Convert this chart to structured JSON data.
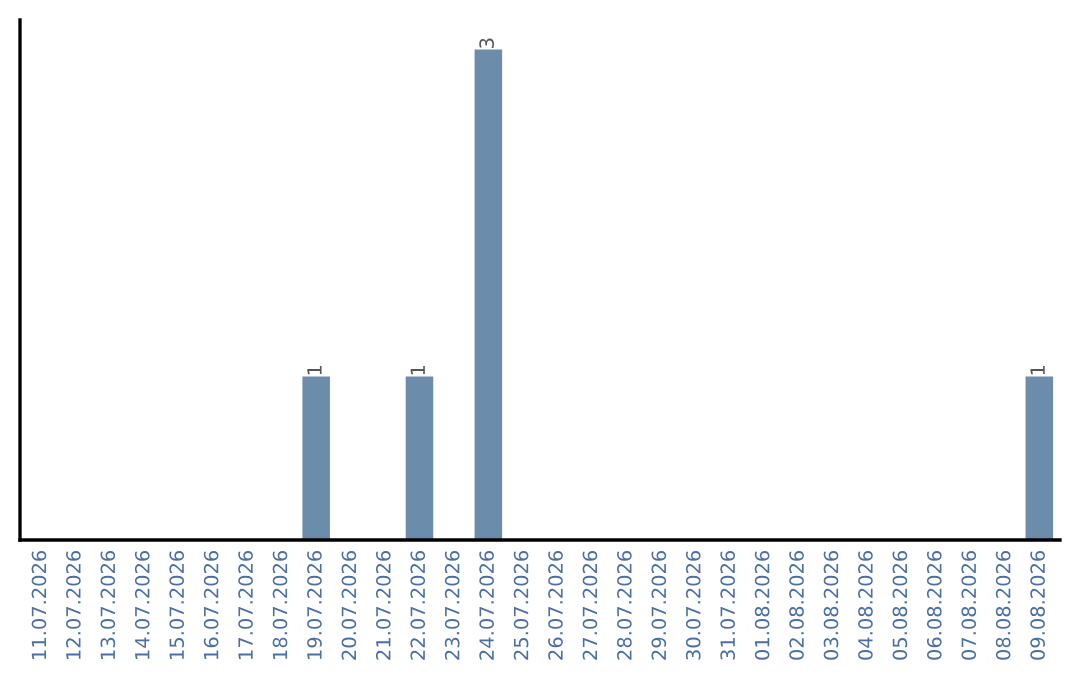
{
  "chart_data": {
    "type": "bar",
    "categories": [
      "11.07.2026",
      "12.07.2026",
      "13.07.2026",
      "14.07.2026",
      "15.07.2026",
      "16.07.2026",
      "17.07.2026",
      "18.07.2026",
      "19.07.2026",
      "20.07.2026",
      "21.07.2026",
      "22.07.2026",
      "23.07.2026",
      "24.07.2026",
      "25.07.2026",
      "26.07.2026",
      "27.07.2026",
      "28.07.2026",
      "29.07.2026",
      "30.07.2026",
      "31.07.2026",
      "01.08.2026",
      "02.08.2026",
      "03.08.2026",
      "04.08.2026",
      "05.08.2026",
      "06.08.2026",
      "07.08.2026",
      "08.08.2026",
      "09.08.2026"
    ],
    "values": [
      0,
      0,
      0,
      0,
      0,
      0,
      0,
      0,
      1,
      0,
      0,
      1,
      0,
      3,
      0,
      0,
      0,
      0,
      0,
      0,
      0,
      0,
      0,
      0,
      0,
      0,
      0,
      0,
      0,
      1
    ],
    "value_labels": [
      null,
      null,
      null,
      null,
      null,
      null,
      null,
      null,
      "1",
      null,
      null,
      "1",
      null,
      "3",
      null,
      null,
      null,
      null,
      null,
      null,
      null,
      null,
      null,
      null,
      null,
      null,
      null,
      null,
      null,
      "1"
    ],
    "color": "#6b8cab",
    "tick_labels": "x",
    "grid": false,
    "legend": false
  }
}
